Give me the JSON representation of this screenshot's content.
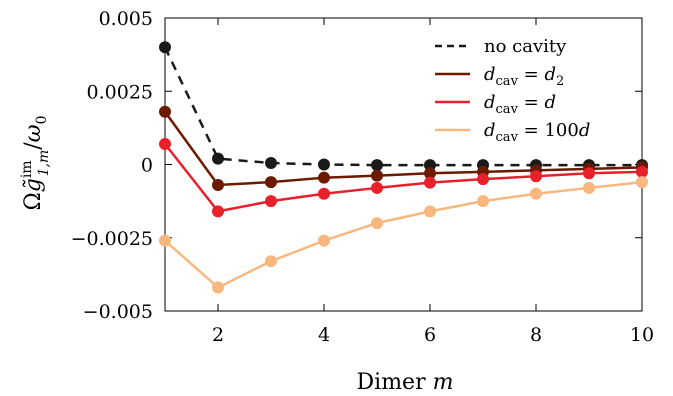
{
  "chart_data": {
    "type": "line",
    "xlabel": "Dimer  m",
    "ylabel": "Ωg̃im1,m/ω0",
    "xlim": [
      1,
      10
    ],
    "ylim": [
      -0.005,
      0.005
    ],
    "xticks": [
      {
        "value": 2,
        "label": "2"
      },
      {
        "value": 4,
        "label": "4"
      },
      {
        "value": 6,
        "label": "6"
      },
      {
        "value": 8,
        "label": "8"
      },
      {
        "value": 10,
        "label": "10"
      }
    ],
    "yticks": [
      {
        "value": 0.005,
        "label": "0.005"
      },
      {
        "value": 0.0025,
        "label": "0.0025"
      },
      {
        "value": 0,
        "label": "0"
      },
      {
        "value": -0.0025,
        "label": "−0.0025"
      },
      {
        "value": -0.005,
        "label": "−0.005"
      }
    ],
    "grid": false,
    "legend_position": "top-right",
    "x": [
      1,
      2,
      3,
      4,
      5,
      6,
      7,
      8,
      9,
      10
    ],
    "series": [
      {
        "name": "no  cavity",
        "color": "#1a1a1a",
        "dash": true,
        "values": [
          0.004,
          0.0002,
          5e-05,
          0.0,
          -2e-05,
          -2e-05,
          -2e-05,
          -2e-05,
          -2e-05,
          -2e-05
        ]
      },
      {
        "name": "dcav = d2",
        "color": "#6b1a00",
        "dash": false,
        "values": [
          0.0018,
          -0.0007,
          -0.0006,
          -0.00045,
          -0.00038,
          -0.0003,
          -0.00025,
          -0.0002,
          -0.00015,
          -0.0001
        ]
      },
      {
        "name": "dcav = d",
        "color": "#e8202a",
        "dash": false,
        "values": [
          0.0007,
          -0.0016,
          -0.00125,
          -0.001,
          -0.0008,
          -0.00062,
          -0.0005,
          -0.0004,
          -0.0003,
          -0.00025
        ]
      },
      {
        "name": "dcav = 100d",
        "color": "#f7b77f",
        "dash": false,
        "values": [
          -0.0026,
          -0.0042,
          -0.0033,
          -0.0026,
          -0.002,
          -0.0016,
          -0.00125,
          -0.001,
          -0.0008,
          -0.0006
        ]
      }
    ]
  }
}
